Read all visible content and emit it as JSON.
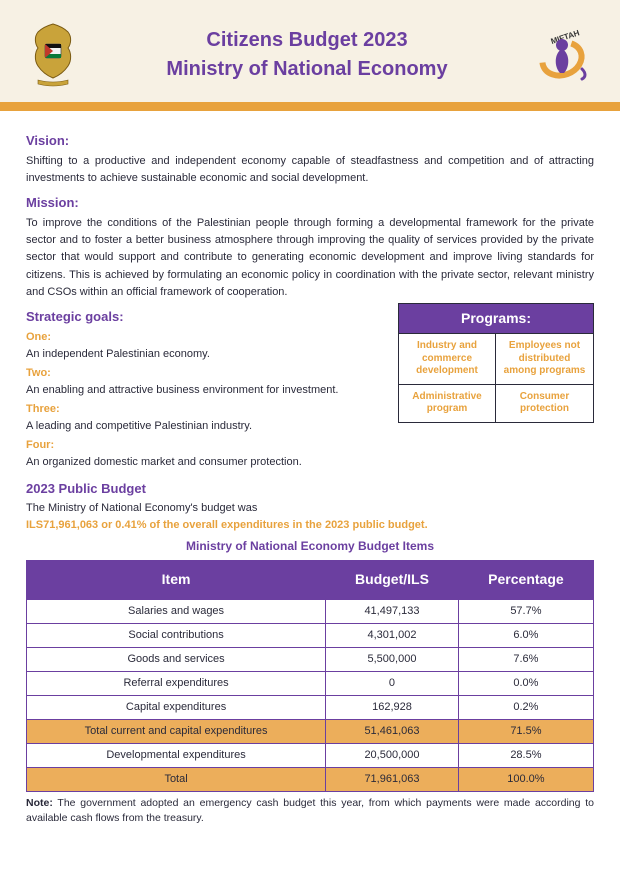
{
  "header": {
    "title1": "Citizens Budget 2023",
    "title2": "Ministry of National Economy",
    "right_logo_label": "MIFTAH"
  },
  "vision": {
    "heading": "Vision:",
    "text": "Shifting to a productive and independent economy capable of steadfastness and competition and of attracting investments to achieve sustainable economic and social development."
  },
  "mission": {
    "heading": "Mission:",
    "text": "To improve the conditions of the Palestinian people through forming a developmental framework for the private sector and to foster a better business atmosphere through improving the quality of services provided by the private sector that would support and contribute to generating economic development and improve living standards for citizens. This is achieved by formulating an economic policy in coordination with the private sector, relevant ministry and CSOs within an official framework of cooperation."
  },
  "goals": {
    "heading": "Strategic goals:",
    "items": [
      {
        "label": "One:",
        "text": "An independent Palestinian economy."
      },
      {
        "label": "Two:",
        "text": "An enabling and attractive business environment for investment."
      },
      {
        "label": "Three:",
        "text": "A leading and competitive Palestinian industry."
      },
      {
        "label": "Four:",
        "text": "An organized domestic market and consumer protection."
      }
    ]
  },
  "programs": {
    "heading": "Programs:",
    "cells": [
      "Industry and commerce development",
      "Employees not distributed among programs",
      "Administrative program",
      "Consumer protection"
    ]
  },
  "budget": {
    "heading": "2023 Public Budget",
    "line1": "The Ministry of National Economy's budget was",
    "line2": "ILS71,961,063 or 0.41% of the overall expenditures in the 2023 public budget.",
    "table_title": "Ministry of National Economy Budget Items",
    "columns": [
      "Item",
      "Budget/ILS",
      "Percentage"
    ],
    "rows": [
      {
        "item": "Salaries and wages",
        "budget": "41,497,133",
        "pct": "57.7%",
        "hl": false
      },
      {
        "item": "Social contributions",
        "budget": "4,301,002",
        "pct": "6.0%",
        "hl": false
      },
      {
        "item": "Goods and services",
        "budget": "5,500,000",
        "pct": "7.6%",
        "hl": false
      },
      {
        "item": "Referral expenditures",
        "budget": "0",
        "pct": "0.0%",
        "hl": false
      },
      {
        "item": "Capital expenditures",
        "budget": "162,928",
        "pct": "0.2%",
        "hl": false
      },
      {
        "item": "Total current and capital expenditures",
        "budget": "51,461,063",
        "pct": "71.5%",
        "hl": true
      },
      {
        "item": "Developmental expenditures",
        "budget": "20,500,000",
        "pct": "28.5%",
        "hl": false
      },
      {
        "item": "Total",
        "budget": "71,961,063",
        "pct": "100.0%",
        "hl": true
      }
    ]
  },
  "note": {
    "label": "Note:",
    "text": "  The government adopted an emergency cash budget this year, from which payments were made according to available cash flows from the treasury."
  },
  "colors": {
    "purple": "#6b3fa0",
    "orange": "#e8a23d",
    "header_bg": "#f7f1e4",
    "row_hl": "#ecae5b"
  }
}
